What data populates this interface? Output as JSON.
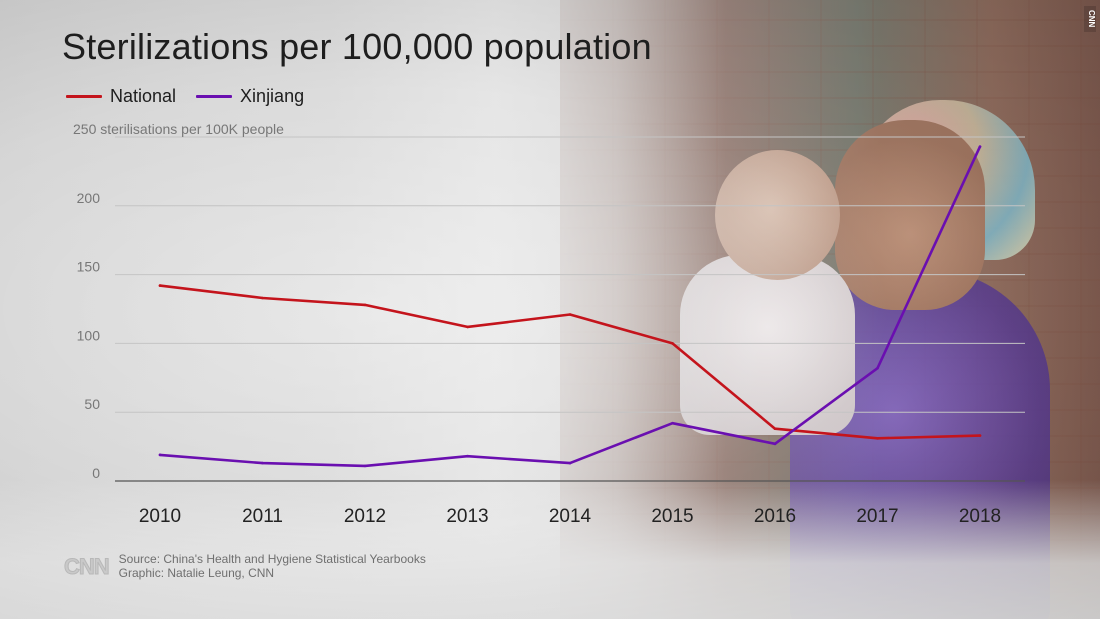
{
  "title": "Sterilizations per 100,000 population",
  "legend": [
    {
      "label": "National",
      "color": "#c4141c"
    },
    {
      "label": "Xinjiang",
      "color": "#6a0fb0"
    }
  ],
  "credit": {
    "logo": "CNN",
    "source": "Source: China's Health and Hygiene Statistical Yearbooks",
    "graphic": "Graphic: Natalie Leung, CNN"
  },
  "corner_logo": "CNN",
  "chart_data": {
    "type": "line",
    "x": [
      "2010",
      "2011",
      "2012",
      "2013",
      "2014",
      "2015",
      "2016",
      "2017",
      "2018"
    ],
    "series": [
      {
        "name": "National",
        "color": "#c4141c",
        "values": [
          142,
          133,
          128,
          112,
          121,
          100,
          38,
          31,
          33
        ]
      },
      {
        "name": "Xinjiang",
        "color": "#6a0fb0",
        "values": [
          19,
          13,
          11,
          18,
          13,
          42,
          27,
          82,
          243
        ]
      }
    ],
    "ylim": [
      0,
      250
    ],
    "yticks": [
      {
        "value": 0,
        "label": "0"
      },
      {
        "value": 50,
        "label": "50"
      },
      {
        "value": 100,
        "label": "100"
      },
      {
        "value": 150,
        "label": "150"
      },
      {
        "value": 200,
        "label": "200"
      },
      {
        "value": 250,
        "label": "250 sterilisations per 100K people"
      }
    ],
    "grid": true,
    "legend_position": "top-left"
  }
}
